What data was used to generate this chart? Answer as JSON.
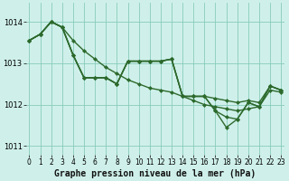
{
  "bg_color": "#cff0ea",
  "line_color": "#2d6a2d",
  "grid_color": "#88ccbb",
  "xlabel": "Graphe pression niveau de la mer (hPa)",
  "ylim": [
    1010.8,
    1014.45
  ],
  "xlim": [
    -0.3,
    23.3
  ],
  "yticks": [
    1011,
    1012,
    1013,
    1014
  ],
  "xticks": [
    0,
    1,
    2,
    3,
    4,
    5,
    6,
    7,
    8,
    9,
    10,
    11,
    12,
    13,
    14,
    15,
    16,
    17,
    18,
    19,
    20,
    21,
    22,
    23
  ],
  "series": [
    [
      1013.55,
      1013.7,
      1014.0,
      1013.87,
      1013.55,
      1013.3,
      1013.1,
      1012.9,
      1012.75,
      1012.6,
      1012.5,
      1012.4,
      1012.35,
      1012.3,
      1012.2,
      1012.1,
      1012.0,
      1011.95,
      1011.9,
      1011.85,
      1011.9,
      1011.95,
      1012.35,
      1012.3
    ],
    [
      1013.55,
      1013.7,
      1014.0,
      1013.87,
      1013.2,
      1012.65,
      1012.65,
      1012.65,
      1012.5,
      1013.05,
      1013.05,
      1013.05,
      1013.05,
      1013.1,
      1012.2,
      1012.2,
      1012.2,
      1012.15,
      1012.1,
      1012.05,
      1012.1,
      1012.05,
      1012.45,
      1012.35
    ],
    [
      1013.55,
      1013.7,
      1014.0,
      1013.87,
      1013.2,
      1012.65,
      1012.65,
      1012.65,
      1012.5,
      1013.05,
      1013.05,
      1013.05,
      1013.05,
      1013.1,
      1012.2,
      1012.2,
      1012.2,
      1011.85,
      1011.45,
      1011.65,
      1012.05,
      1011.95,
      1012.45,
      1012.35
    ],
    [
      1013.55,
      1013.7,
      1014.0,
      1013.87,
      1013.2,
      1012.65,
      1012.65,
      1012.65,
      1012.5,
      1013.05,
      1013.05,
      1013.05,
      1013.05,
      1013.1,
      1012.2,
      1012.2,
      1012.2,
      1011.85,
      1011.7,
      1011.65,
      1012.05,
      1011.95,
      1012.45,
      1012.35
    ]
  ],
  "label_fontsize": 7.0,
  "tick_fontsize": 5.5
}
